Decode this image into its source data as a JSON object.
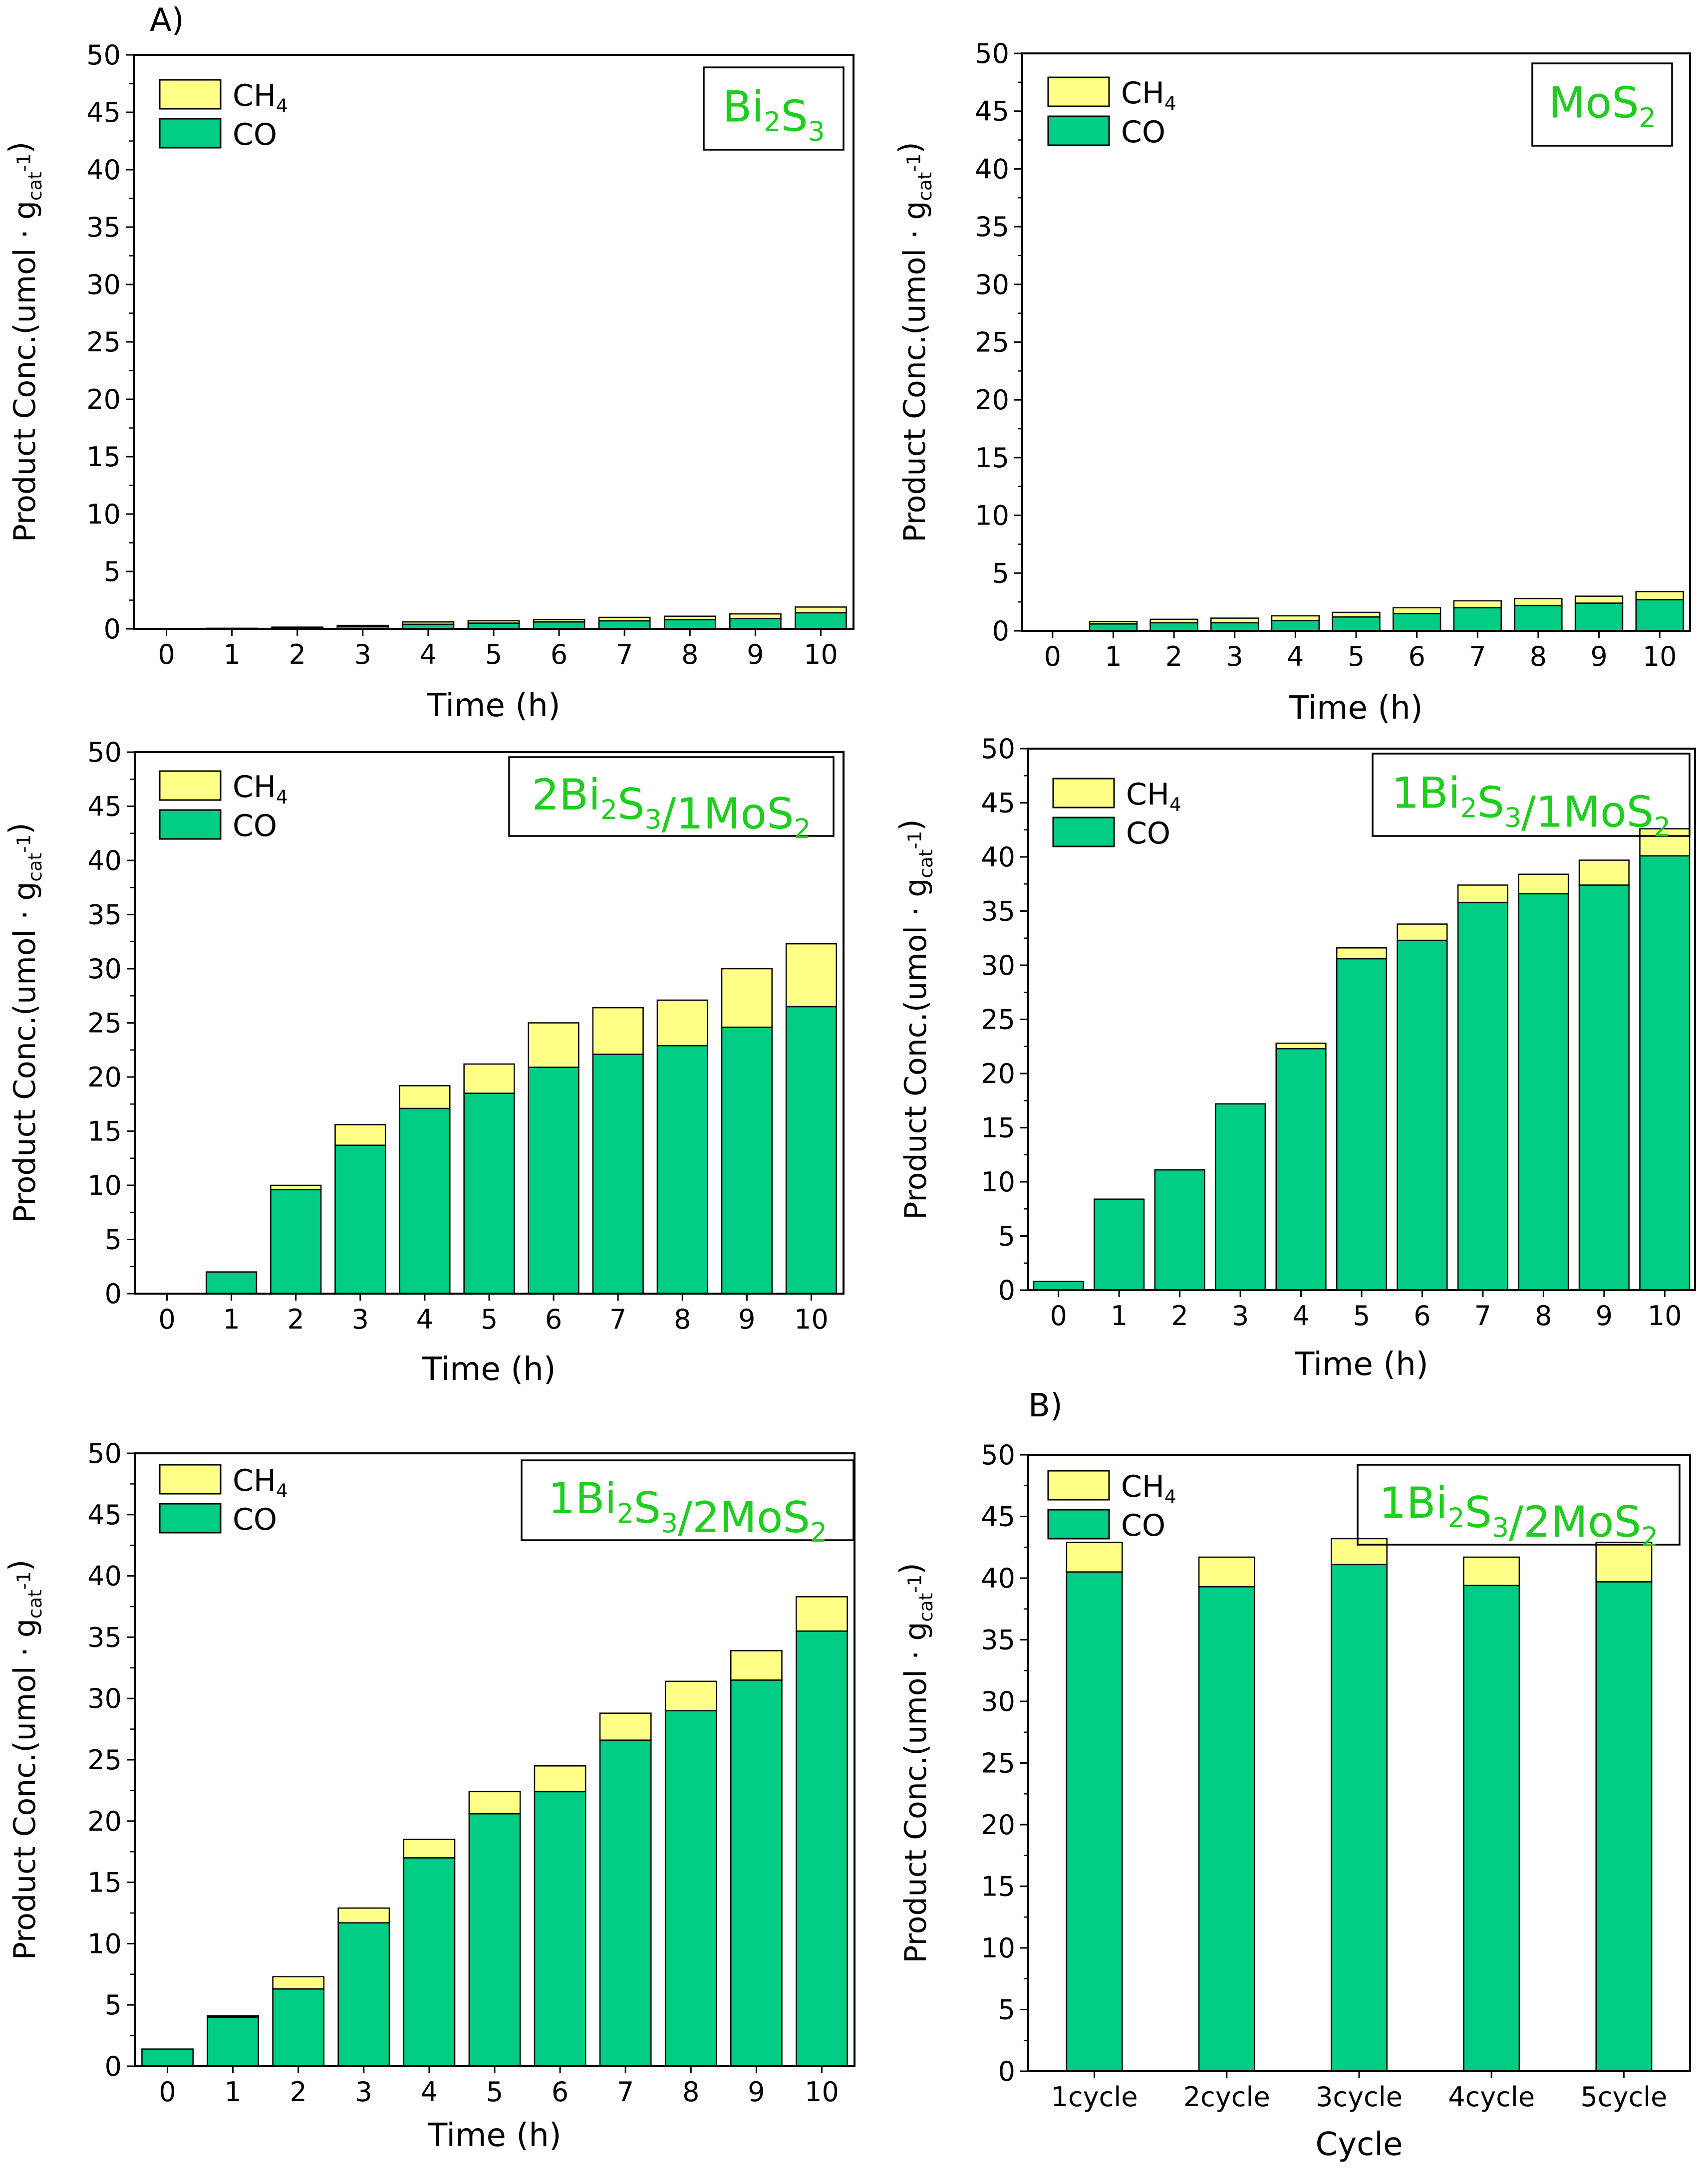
{
  "figure": {
    "panel_tags": [
      "A)",
      "B)"
    ]
  },
  "colors": {
    "CO": "#00cc83",
    "CH4": "#ffff88",
    "frame": "#000000",
    "label_green": "#1ccf1c"
  },
  "chart_data": [
    {
      "type": "bar",
      "stacked": true,
      "title": "Bi2S3",
      "title_parts": [
        [
          "Bi",
          ""
        ],
        [
          "2",
          "sub"
        ],
        [
          "S",
          ""
        ],
        [
          "3",
          "sub"
        ]
      ],
      "xlabel": "Time (h)",
      "ylabel": "Product Conc.(umol · gcat-1)",
      "ylim": [
        0,
        50
      ],
      "yticks": [
        0,
        5,
        10,
        15,
        20,
        25,
        30,
        35,
        40,
        45,
        50
      ],
      "categories": [
        "0",
        "1",
        "2",
        "3",
        "4",
        "5",
        "6",
        "7",
        "8",
        "9",
        "10"
      ],
      "series": [
        {
          "name": "CO",
          "values": [
            0.0,
            0.05,
            0.1,
            0.2,
            0.4,
            0.5,
            0.6,
            0.7,
            0.8,
            0.9,
            1.4
          ]
        },
        {
          "name": "CH4",
          "values": [
            0.0,
            0.0,
            0.05,
            0.1,
            0.2,
            0.2,
            0.2,
            0.3,
            0.3,
            0.4,
            0.5
          ]
        }
      ],
      "legend": "top-left"
    },
    {
      "type": "bar",
      "stacked": true,
      "title": "MoS2",
      "title_parts": [
        [
          "MoS",
          ""
        ],
        [
          "2",
          "sub"
        ]
      ],
      "xlabel": "Time (h)",
      "ylabel": "Product Conc.(umol · gcat-1)",
      "ylim": [
        0,
        50
      ],
      "yticks": [
        0,
        5,
        10,
        15,
        20,
        25,
        30,
        35,
        40,
        45,
        50
      ],
      "categories": [
        "0",
        "1",
        "2",
        "3",
        "4",
        "5",
        "6",
        "7",
        "8",
        "9",
        "10"
      ],
      "series": [
        {
          "name": "CO",
          "values": [
            0.0,
            0.6,
            0.7,
            0.7,
            0.9,
            1.2,
            1.5,
            2.0,
            2.2,
            2.4,
            2.7
          ]
        },
        {
          "name": "CH4",
          "values": [
            0.0,
            0.2,
            0.3,
            0.4,
            0.4,
            0.4,
            0.5,
            0.6,
            0.6,
            0.6,
            0.7
          ]
        }
      ],
      "legend": "top-left"
    },
    {
      "type": "bar",
      "stacked": true,
      "title": "2Bi2S3/1MoS2",
      "title_parts": [
        [
          "2Bi",
          ""
        ],
        [
          "2",
          "sub"
        ],
        [
          "S",
          ""
        ],
        [
          "3",
          "sub"
        ],
        [
          "/1MoS",
          ""
        ],
        [
          "2",
          "sub"
        ]
      ],
      "xlabel": "Time (h)",
      "ylabel": "Product Conc.(umol · gcat-1)",
      "ylim": [
        0,
        50
      ],
      "yticks": [
        0,
        5,
        10,
        15,
        20,
        25,
        30,
        35,
        40,
        45,
        50
      ],
      "categories": [
        "0",
        "1",
        "2",
        "3",
        "4",
        "5",
        "6",
        "7",
        "8",
        "9",
        "10"
      ],
      "series": [
        {
          "name": "CO",
          "values": [
            0.0,
            2.0,
            9.6,
            13.7,
            17.1,
            18.5,
            20.9,
            22.1,
            22.9,
            24.6,
            26.5
          ]
        },
        {
          "name": "CH4",
          "values": [
            0.0,
            0.0,
            0.4,
            1.9,
            2.1,
            2.7,
            4.1,
            4.3,
            4.2,
            5.4,
            5.8
          ]
        }
      ],
      "legend": "top-left"
    },
    {
      "type": "bar",
      "stacked": true,
      "title": "1Bi2S3/1MoS2",
      "title_parts": [
        [
          "1Bi",
          ""
        ],
        [
          "2",
          "sub"
        ],
        [
          "S",
          ""
        ],
        [
          "3",
          "sub"
        ],
        [
          "/1MoS",
          ""
        ],
        [
          "2",
          "sub"
        ]
      ],
      "xlabel": "Time (h)",
      "ylabel": "Product Conc.(umol · gcat-1)",
      "ylim": [
        0,
        50
      ],
      "yticks": [
        0,
        5,
        10,
        15,
        20,
        25,
        30,
        35,
        40,
        45,
        50
      ],
      "categories": [
        "0",
        "1",
        "2",
        "3",
        "4",
        "5",
        "6",
        "7",
        "8",
        "9",
        "10"
      ],
      "series": [
        {
          "name": "CO",
          "values": [
            0.8,
            8.4,
            11.1,
            17.2,
            22.3,
            30.6,
            32.3,
            35.8,
            36.6,
            37.4,
            40.1
          ]
        },
        {
          "name": "CH4",
          "values": [
            0.0,
            0.0,
            0.0,
            0.0,
            0.5,
            1.0,
            1.5,
            1.6,
            1.8,
            2.3,
            2.5
          ]
        }
      ],
      "legend": "top-left"
    },
    {
      "type": "bar",
      "stacked": true,
      "title": "1Bi2S3/2MoS2",
      "title_parts": [
        [
          "1Bi",
          ""
        ],
        [
          "2",
          "sub"
        ],
        [
          "S",
          ""
        ],
        [
          "3",
          "sub"
        ],
        [
          "/2MoS",
          ""
        ],
        [
          "2",
          "sub"
        ]
      ],
      "xlabel": "Time (h)",
      "ylabel": "Product Conc.(umol · gcat-1)",
      "ylim": [
        0,
        50
      ],
      "yticks": [
        0,
        5,
        10,
        15,
        20,
        25,
        30,
        35,
        40,
        45,
        50
      ],
      "categories": [
        "0",
        "1",
        "2",
        "3",
        "4",
        "5",
        "6",
        "7",
        "8",
        "9",
        "10"
      ],
      "series": [
        {
          "name": "CO",
          "values": [
            1.4,
            4.0,
            6.3,
            11.7,
            17.0,
            20.6,
            22.4,
            26.6,
            29.0,
            31.5,
            35.5
          ]
        },
        {
          "name": "CH4",
          "values": [
            0.0,
            0.1,
            1.0,
            1.2,
            1.5,
            1.8,
            2.1,
            2.2,
            2.4,
            2.4,
            2.8
          ]
        }
      ],
      "legend": "top-left"
    },
    {
      "type": "bar",
      "stacked": true,
      "title": "1Bi2S3/2MoS2",
      "title_parts": [
        [
          "1Bi",
          ""
        ],
        [
          "2",
          "sub"
        ],
        [
          "S",
          ""
        ],
        [
          "3",
          "sub"
        ],
        [
          "/2MoS",
          ""
        ],
        [
          "2",
          "sub"
        ]
      ],
      "xlabel": "Cycle",
      "ylabel": "Product Conc.(umol · gcat-1)",
      "ylim": [
        0,
        50
      ],
      "yticks": [
        0,
        5,
        10,
        15,
        20,
        25,
        30,
        35,
        40,
        45,
        50
      ],
      "categories": [
        "1cycle",
        "2cycle",
        "3cycle",
        "4cycle",
        "5cycle"
      ],
      "series": [
        {
          "name": "CO",
          "values": [
            40.5,
            39.3,
            41.1,
            39.4,
            39.7
          ]
        },
        {
          "name": "CH4",
          "values": [
            2.4,
            2.4,
            2.1,
            2.3,
            3.2
          ]
        }
      ],
      "legend": "top-left"
    }
  ]
}
